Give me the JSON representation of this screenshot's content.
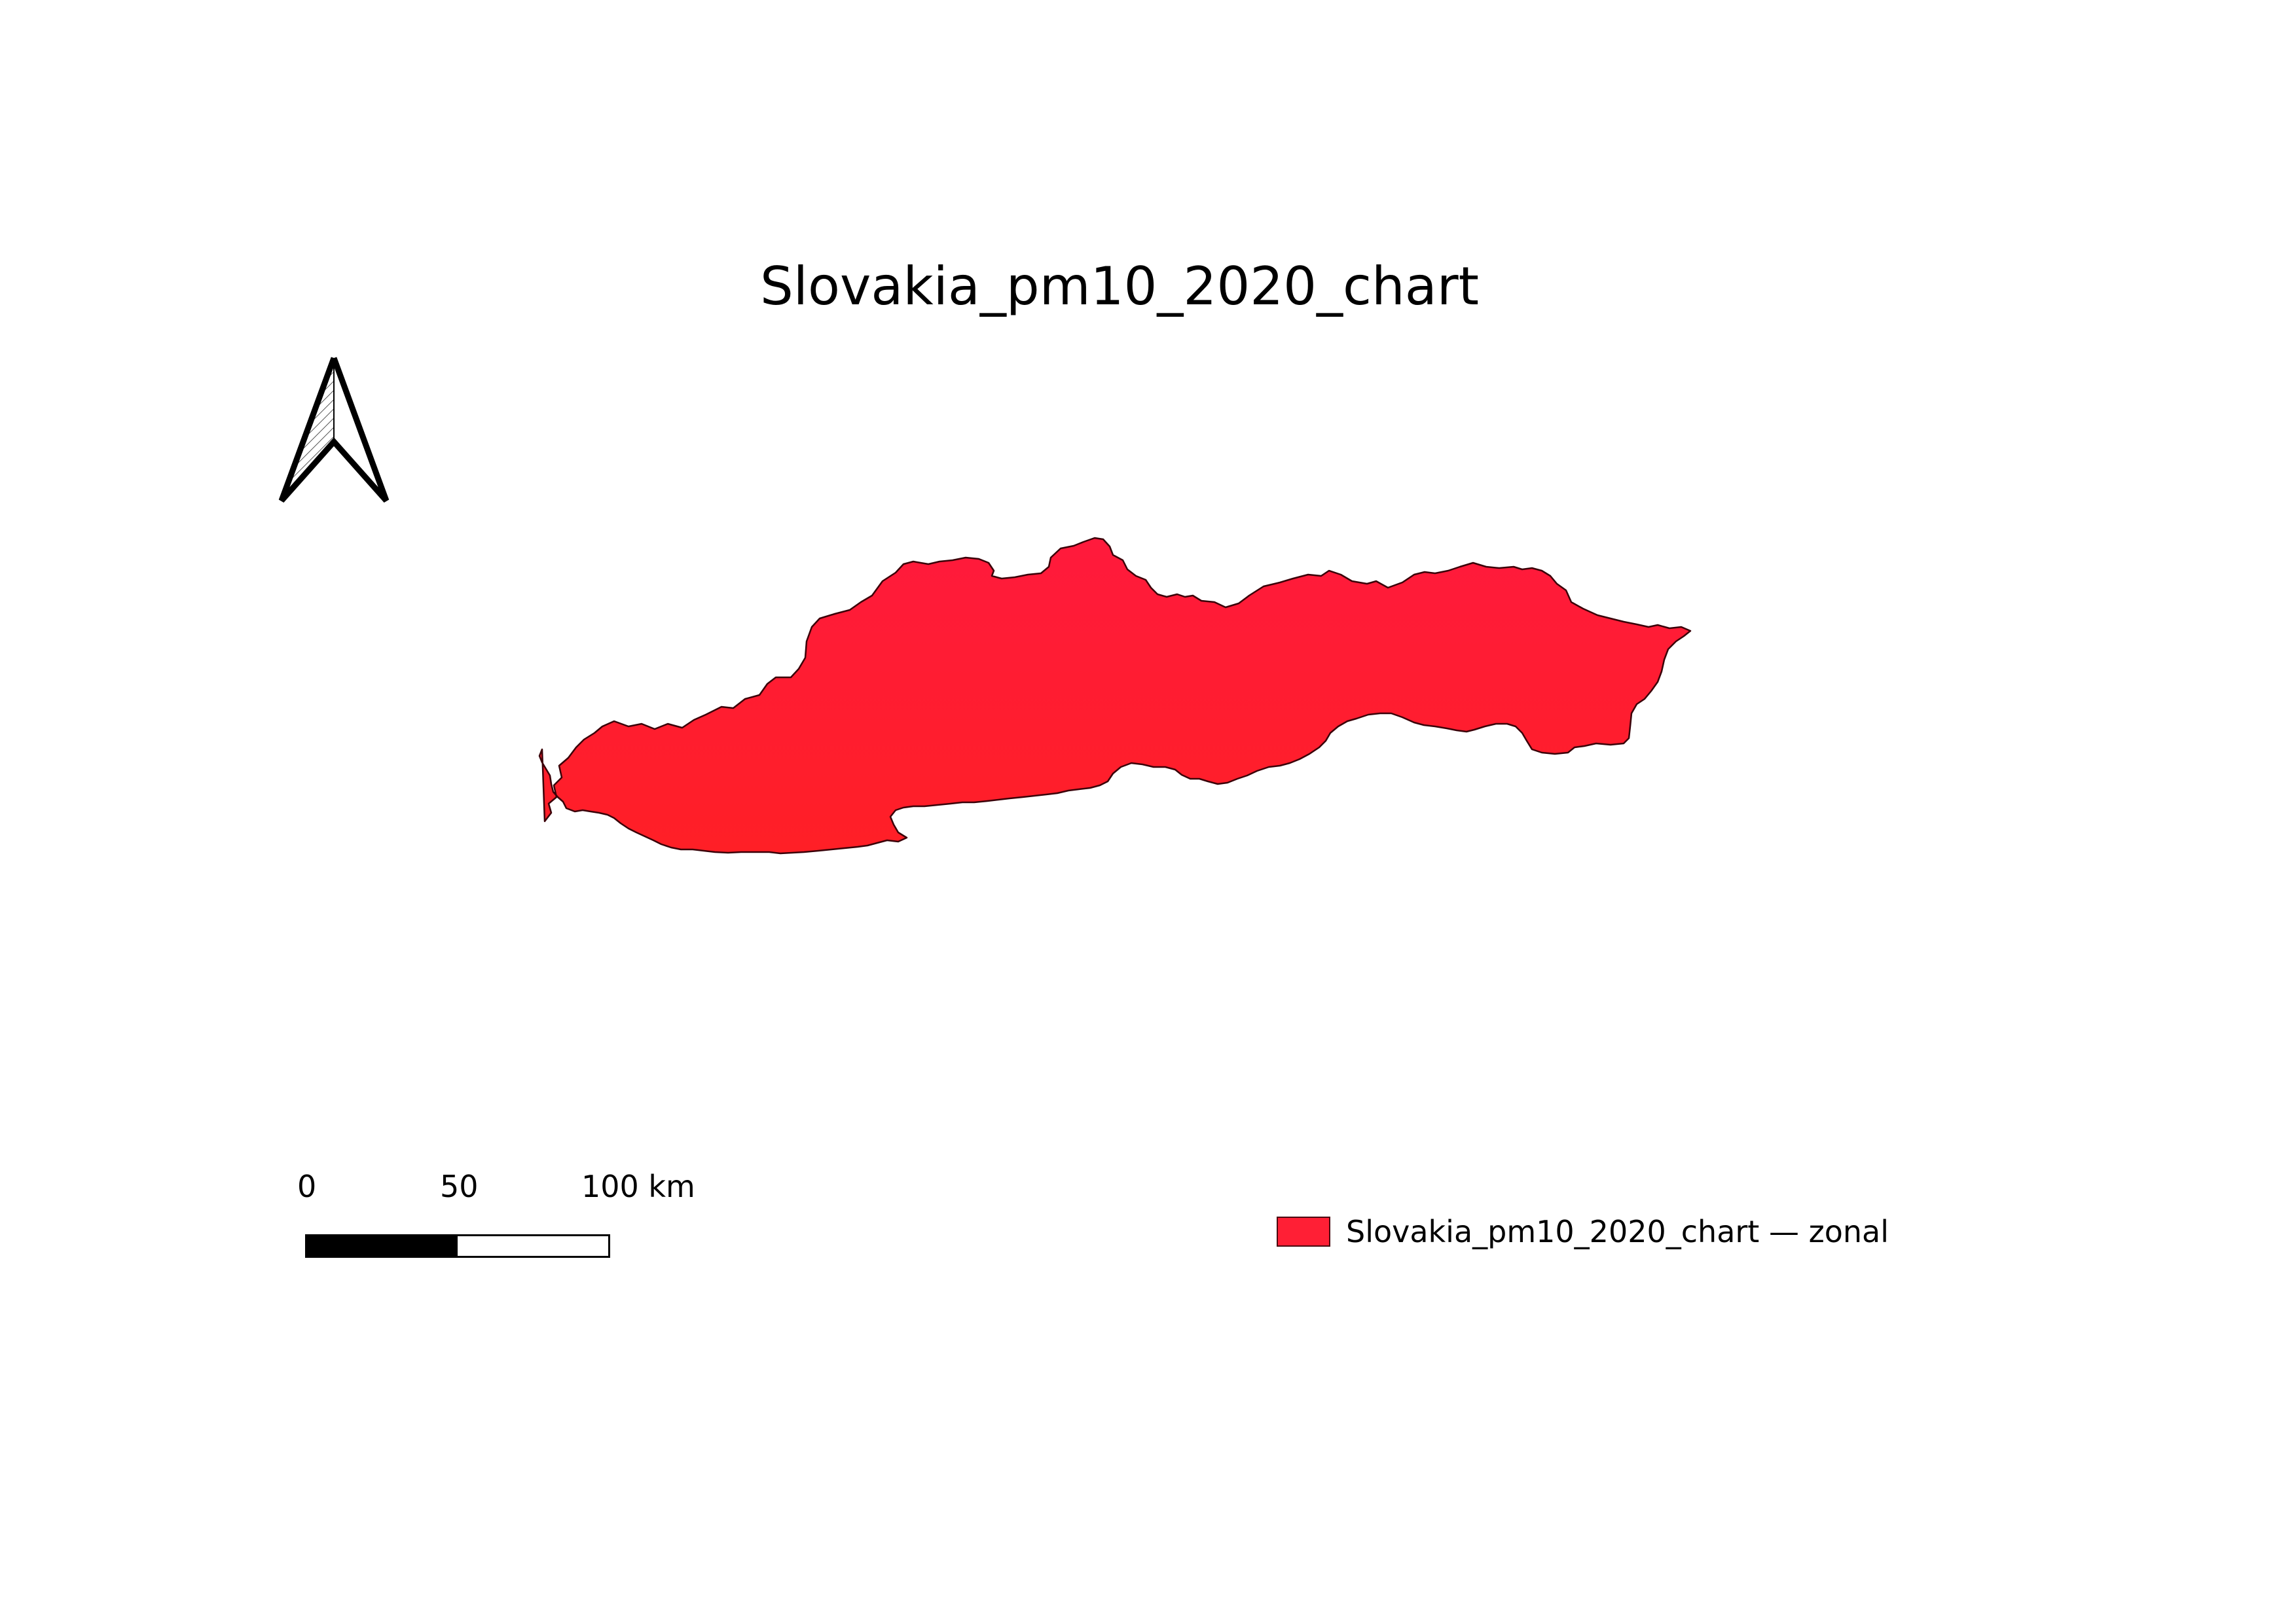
{
  "map": {
    "title": "Slovakia_pm10_2020_chart",
    "fill_color_top": "#ff1a3c",
    "fill_color_bottom": "#ff1f26",
    "outline_color": "#3a0008"
  },
  "north_arrow": {
    "icon": "north-arrow-icon"
  },
  "scale_bar": {
    "labels": [
      "0",
      "50",
      "100 km"
    ]
  },
  "legend": {
    "items": [
      {
        "label": "Slovakia_pm10_2020_chart — zonal",
        "color": "#ff1f35"
      }
    ]
  }
}
